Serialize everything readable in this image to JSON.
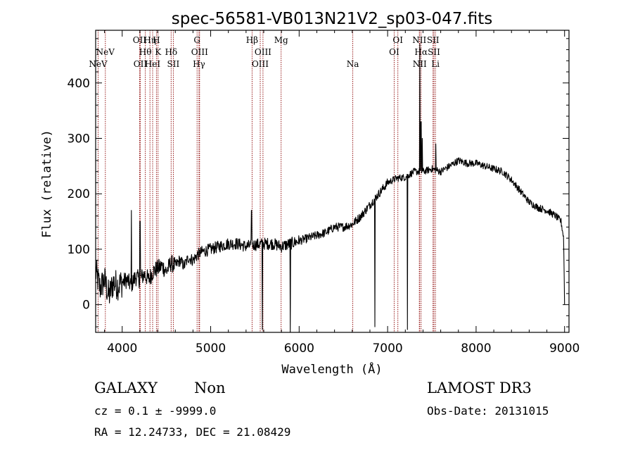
{
  "chart_data": {
    "type": "line",
    "title": "spec-56581-VB013N21V2_sp03-047.fits",
    "xlabel": "Wavelength (Å)",
    "ylabel": "Flux (relative)",
    "xlim": [
      3700,
      9050
    ],
    "ylim": [
      -50,
      495
    ],
    "xticks": [
      4000,
      5000,
      6000,
      7000,
      8000,
      9000
    ],
    "yticks": [
      0,
      100,
      200,
      300,
      400
    ],
    "line_color": "#000000",
    "marker_color": "#8b0000",
    "spectrum_anchors": [
      [
        3700,
        60
      ],
      [
        3750,
        30
      ],
      [
        3800,
        45
      ],
      [
        3850,
        15
      ],
      [
        3900,
        40
      ],
      [
        3950,
        35
      ],
      [
        4000,
        40
      ],
      [
        4050,
        45
      ],
      [
        4100,
        35
      ],
      [
        4150,
        50
      ],
      [
        4200,
        45
      ],
      [
        4250,
        55
      ],
      [
        4300,
        45
      ],
      [
        4350,
        60
      ],
      [
        4400,
        65
      ],
      [
        4450,
        70
      ],
      [
        4500,
        60
      ],
      [
        4550,
        75
      ],
      [
        4600,
        70
      ],
      [
        4650,
        80
      ],
      [
        4700,
        70
      ],
      [
        4750,
        85
      ],
      [
        4800,
        80
      ],
      [
        4850,
        90
      ],
      [
        4900,
        95
      ],
      [
        5000,
        100
      ],
      [
        5100,
        105
      ],
      [
        5200,
        110
      ],
      [
        5300,
        110
      ],
      [
        5400,
        105
      ],
      [
        5500,
        108
      ],
      [
        5600,
        110
      ],
      [
        5700,
        110
      ],
      [
        5800,
        105
      ],
      [
        5900,
        110
      ],
      [
        6000,
        115
      ],
      [
        6100,
        120
      ],
      [
        6200,
        125
      ],
      [
        6300,
        130
      ],
      [
        6400,
        140
      ],
      [
        6500,
        140
      ],
      [
        6600,
        145
      ],
      [
        6700,
        160
      ],
      [
        6800,
        180
      ],
      [
        6900,
        200
      ],
      [
        7000,
        220
      ],
      [
        7100,
        228
      ],
      [
        7200,
        230
      ],
      [
        7300,
        240
      ],
      [
        7400,
        240
      ],
      [
        7500,
        245
      ],
      [
        7600,
        240
      ],
      [
        7700,
        250
      ],
      [
        7800,
        260
      ],
      [
        7900,
        255
      ],
      [
        8000,
        255
      ],
      [
        8100,
        250
      ],
      [
        8200,
        245
      ],
      [
        8300,
        240
      ],
      [
        8400,
        225
      ],
      [
        8500,
        205
      ],
      [
        8600,
        185
      ],
      [
        8700,
        175
      ],
      [
        8800,
        170
      ],
      [
        8900,
        160
      ],
      [
        8960,
        150
      ],
      [
        8990,
        120
      ],
      [
        9000,
        0
      ]
    ],
    "spectral_features": [
      {
        "w": 4103,
        "v": 170
      },
      {
        "w": 4202,
        "v": 150
      },
      {
        "w": 5462,
        "v": 170
      },
      {
        "w": 5585,
        "v": -45
      },
      {
        "w": 5900,
        "v": -50
      },
      {
        "w": 6855,
        "v": -40
      },
      {
        "w": 7225,
        "v": -45
      },
      {
        "w": 7363,
        "v": 470
      },
      {
        "w": 7378,
        "v": 330
      },
      {
        "w": 7393,
        "v": 300
      },
      {
        "w": 7545,
        "v": 290
      }
    ],
    "lines": [
      {
        "label": "NeV",
        "wave": 3728,
        "row": 3
      },
      {
        "label": "NeV",
        "wave": 3810,
        "row": 2
      },
      {
        "label": "OII",
        "wave": 4196,
        "row": 1
      },
      {
        "label": "OII",
        "wave": 4204,
        "row": 3
      },
      {
        "label": "Hθ",
        "wave": 4261,
        "row": 2
      },
      {
        "label": "Hη",
        "wave": 4314,
        "row": 1
      },
      {
        "label": "HeI",
        "wave": 4344,
        "row": 3
      },
      {
        "label": "H",
        "wave": 4387,
        "row": 1
      },
      {
        "label": "K",
        "wave": 4405,
        "row": 2
      },
      {
        "label": "Hδ",
        "wave": 4553,
        "row": 2
      },
      {
        "label": "SII",
        "wave": 4578,
        "row": 3
      },
      {
        "label": "G",
        "wave": 4846,
        "row": 1
      },
      {
        "label": "OIII",
        "wave": 4875,
        "row": 2
      },
      {
        "label": "Hγ",
        "wave": 4868,
        "row": 3
      },
      {
        "label": "Hβ",
        "wave": 5468,
        "row": 1
      },
      {
        "label": "OIII",
        "wave": 5591,
        "row": 2
      },
      {
        "label": "OIII",
        "wave": 5560,
        "row": 3
      },
      {
        "label": "Mg",
        "wave": 5796,
        "row": 1
      },
      {
        "label": "Na",
        "wave": 6606,
        "row": 3
      },
      {
        "label": "OI",
        "wave": 7116,
        "row": 1
      },
      {
        "label": "OI",
        "wave": 7074,
        "row": 2
      },
      {
        "label": "NII",
        "wave": 7358,
        "row": 1
      },
      {
        "label": "Hα",
        "wave": 7378,
        "row": 2
      },
      {
        "label": "NII",
        "wave": 7362,
        "row": 3
      },
      {
        "label": "SII",
        "wave": 7513,
        "row": 1
      },
      {
        "label": "SII",
        "wave": 7524,
        "row": 2
      },
      {
        "label": "Li",
        "wave": 7540,
        "row": 3
      }
    ]
  },
  "info": {
    "class": "GALAXY",
    "subclass": "Non",
    "survey": "LAMOST DR3",
    "cz_line": "cz = 0.1 ± -9999.0",
    "obs_date_line": "Obs-Date: 20131015",
    "radec_line": "RA =  12.24733, DEC =  21.08429"
  }
}
